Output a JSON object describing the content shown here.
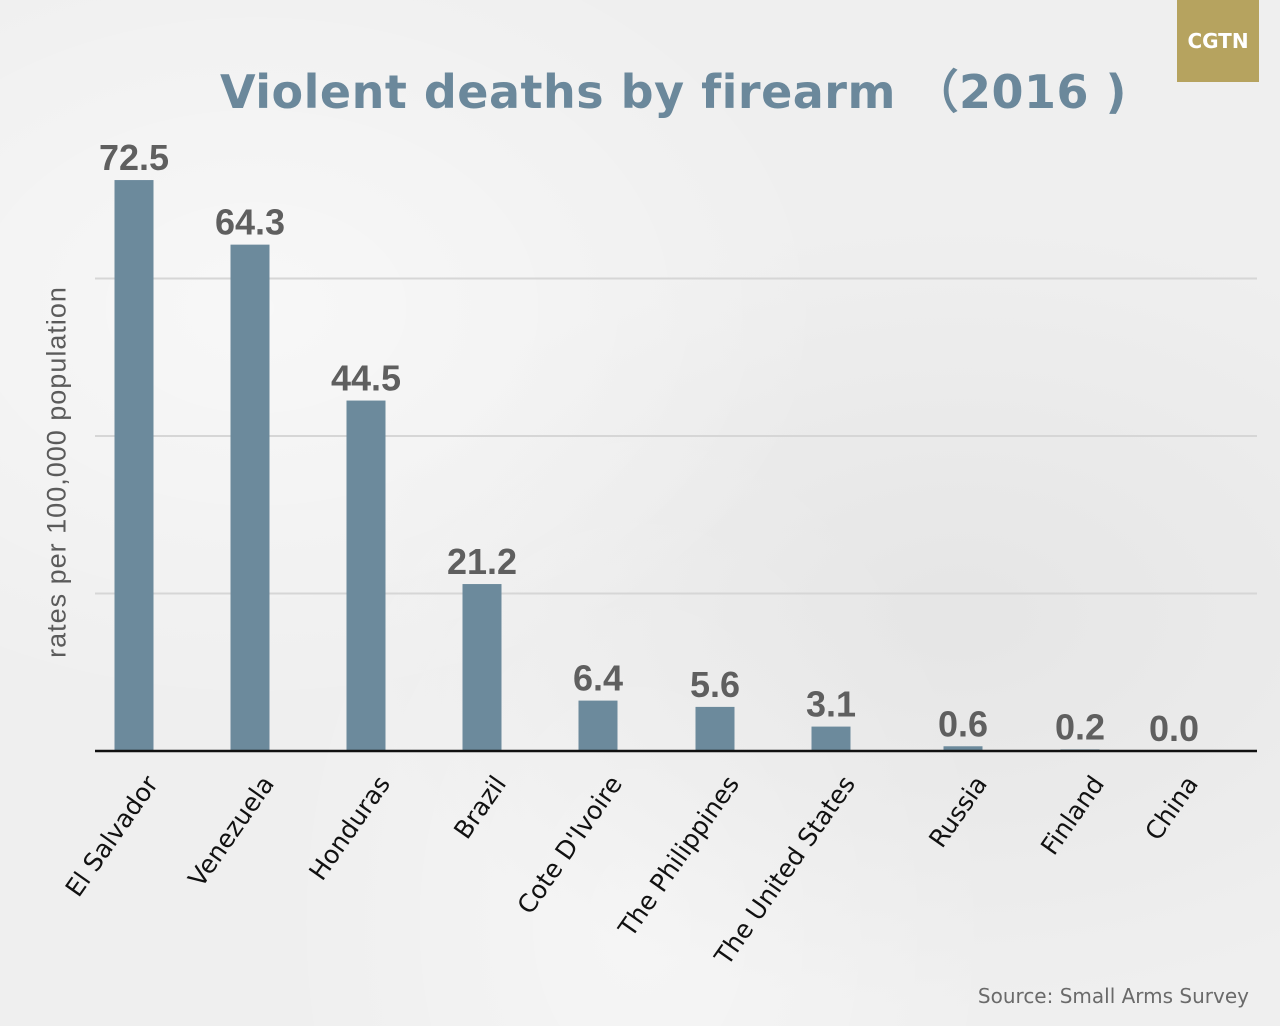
{
  "logo": {
    "text": "CGTN",
    "color": "#b6a35f"
  },
  "chart_data": {
    "type": "bar",
    "title": "Violent deaths by firearm （2016 )",
    "xlabel": "",
    "ylabel": "rates per 100,000 population",
    "source": "Source: Small Arms Survey",
    "categories": [
      "El Salvador",
      "Venezuela",
      "Honduras",
      "Brazil",
      "Cote D'Ivoire",
      "The Philippines",
      "The United States",
      "Russia",
      "Finland",
      "China"
    ],
    "values": [
      72.5,
      64.3,
      44.5,
      21.2,
      6.4,
      5.6,
      3.1,
      0.6,
      0.2,
      0.0
    ],
    "value_labels": [
      "72.5",
      "64.3",
      "44.5",
      "21.2",
      "6.4",
      "5.6",
      "3.1",
      "0.6",
      "0.2",
      "0.0"
    ],
    "ylim": [
      0,
      80
    ],
    "gridlines": [
      20,
      40,
      60
    ],
    "grid": true,
    "legend": "none",
    "colors": {
      "bar": "#6c8a9c",
      "title": "#6b889b",
      "value_label": "#5f5f5f"
    }
  }
}
